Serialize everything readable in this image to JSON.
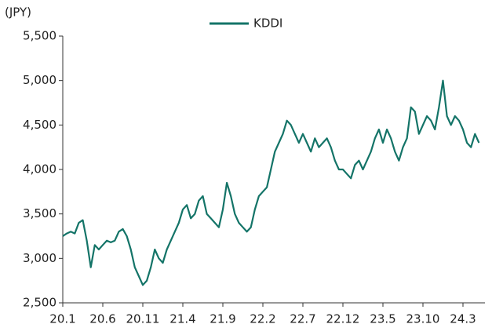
{
  "chart_data": {
    "type": "line",
    "y_label": "(JPY)",
    "categories": [
      "20.1",
      null,
      null,
      null,
      null,
      null,
      null,
      null,
      null,
      null,
      "20.6",
      null,
      null,
      null,
      null,
      null,
      null,
      null,
      null,
      null,
      "20.11",
      null,
      null,
      null,
      null,
      null,
      null,
      null,
      null,
      null,
      "21.4",
      null,
      null,
      null,
      null,
      null,
      null,
      null,
      null,
      null,
      "21.9",
      null,
      null,
      null,
      null,
      null,
      null,
      null,
      null,
      null,
      "22.2",
      null,
      null,
      null,
      null,
      null,
      null,
      null,
      null,
      null,
      "22.7",
      null,
      null,
      null,
      null,
      null,
      null,
      null,
      null,
      null,
      "22.12",
      null,
      null,
      null,
      null,
      null,
      null,
      null,
      null,
      null,
      "23.5",
      null,
      null,
      null,
      null,
      null,
      null,
      null,
      null,
      null,
      "23.10",
      null,
      null,
      null,
      null,
      null,
      null,
      null,
      null,
      null,
      "24.3",
      null,
      null,
      null,
      null
    ],
    "series": [
      {
        "name": "KDDI",
        "color": "#147468",
        "values": [
          3250,
          3280,
          3300,
          3280,
          3400,
          3430,
          3200,
          2900,
          3150,
          3100,
          3150,
          3200,
          3180,
          3200,
          3300,
          3330,
          3250,
          3100,
          2900,
          2800,
          2700,
          2750,
          2900,
          3100,
          3000,
          2950,
          3100,
          3200,
          3300,
          3400,
          3550,
          3600,
          3450,
          3500,
          3650,
          3700,
          3500,
          3450,
          3400,
          3350,
          3550,
          3850,
          3700,
          3500,
          3400,
          3350,
          3300,
          3350,
          3550,
          3700,
          3750,
          3800,
          4000,
          4200,
          4300,
          4400,
          4550,
          4500,
          4400,
          4300,
          4400,
          4300,
          4200,
          4350,
          4250,
          4300,
          4350,
          4250,
          4100,
          4000,
          4000,
          3950,
          3900,
          4050,
          4100,
          4000,
          4100,
          4200,
          4350,
          4450,
          4300,
          4450,
          4350,
          4200,
          4100,
          4250,
          4350,
          4700,
          4650,
          4400,
          4500,
          4600,
          4550,
          4450,
          4700,
          5000,
          4600,
          4500,
          4600,
          4550,
          4450,
          4300,
          4250,
          4400,
          4300
        ]
      }
    ],
    "ylim": [
      2500,
      5500
    ],
    "yticks": [
      {
        "value": 2500,
        "label": "2,500"
      },
      {
        "value": 3000,
        "label": "3,000"
      },
      {
        "value": 3500,
        "label": "3,500"
      },
      {
        "value": 4000,
        "label": "4,000"
      },
      {
        "value": 4500,
        "label": "4,500"
      },
      {
        "value": 5000,
        "label": "5,000"
      },
      {
        "value": 5500,
        "label": "5,500"
      }
    ],
    "grid": false,
    "legend": "top"
  }
}
